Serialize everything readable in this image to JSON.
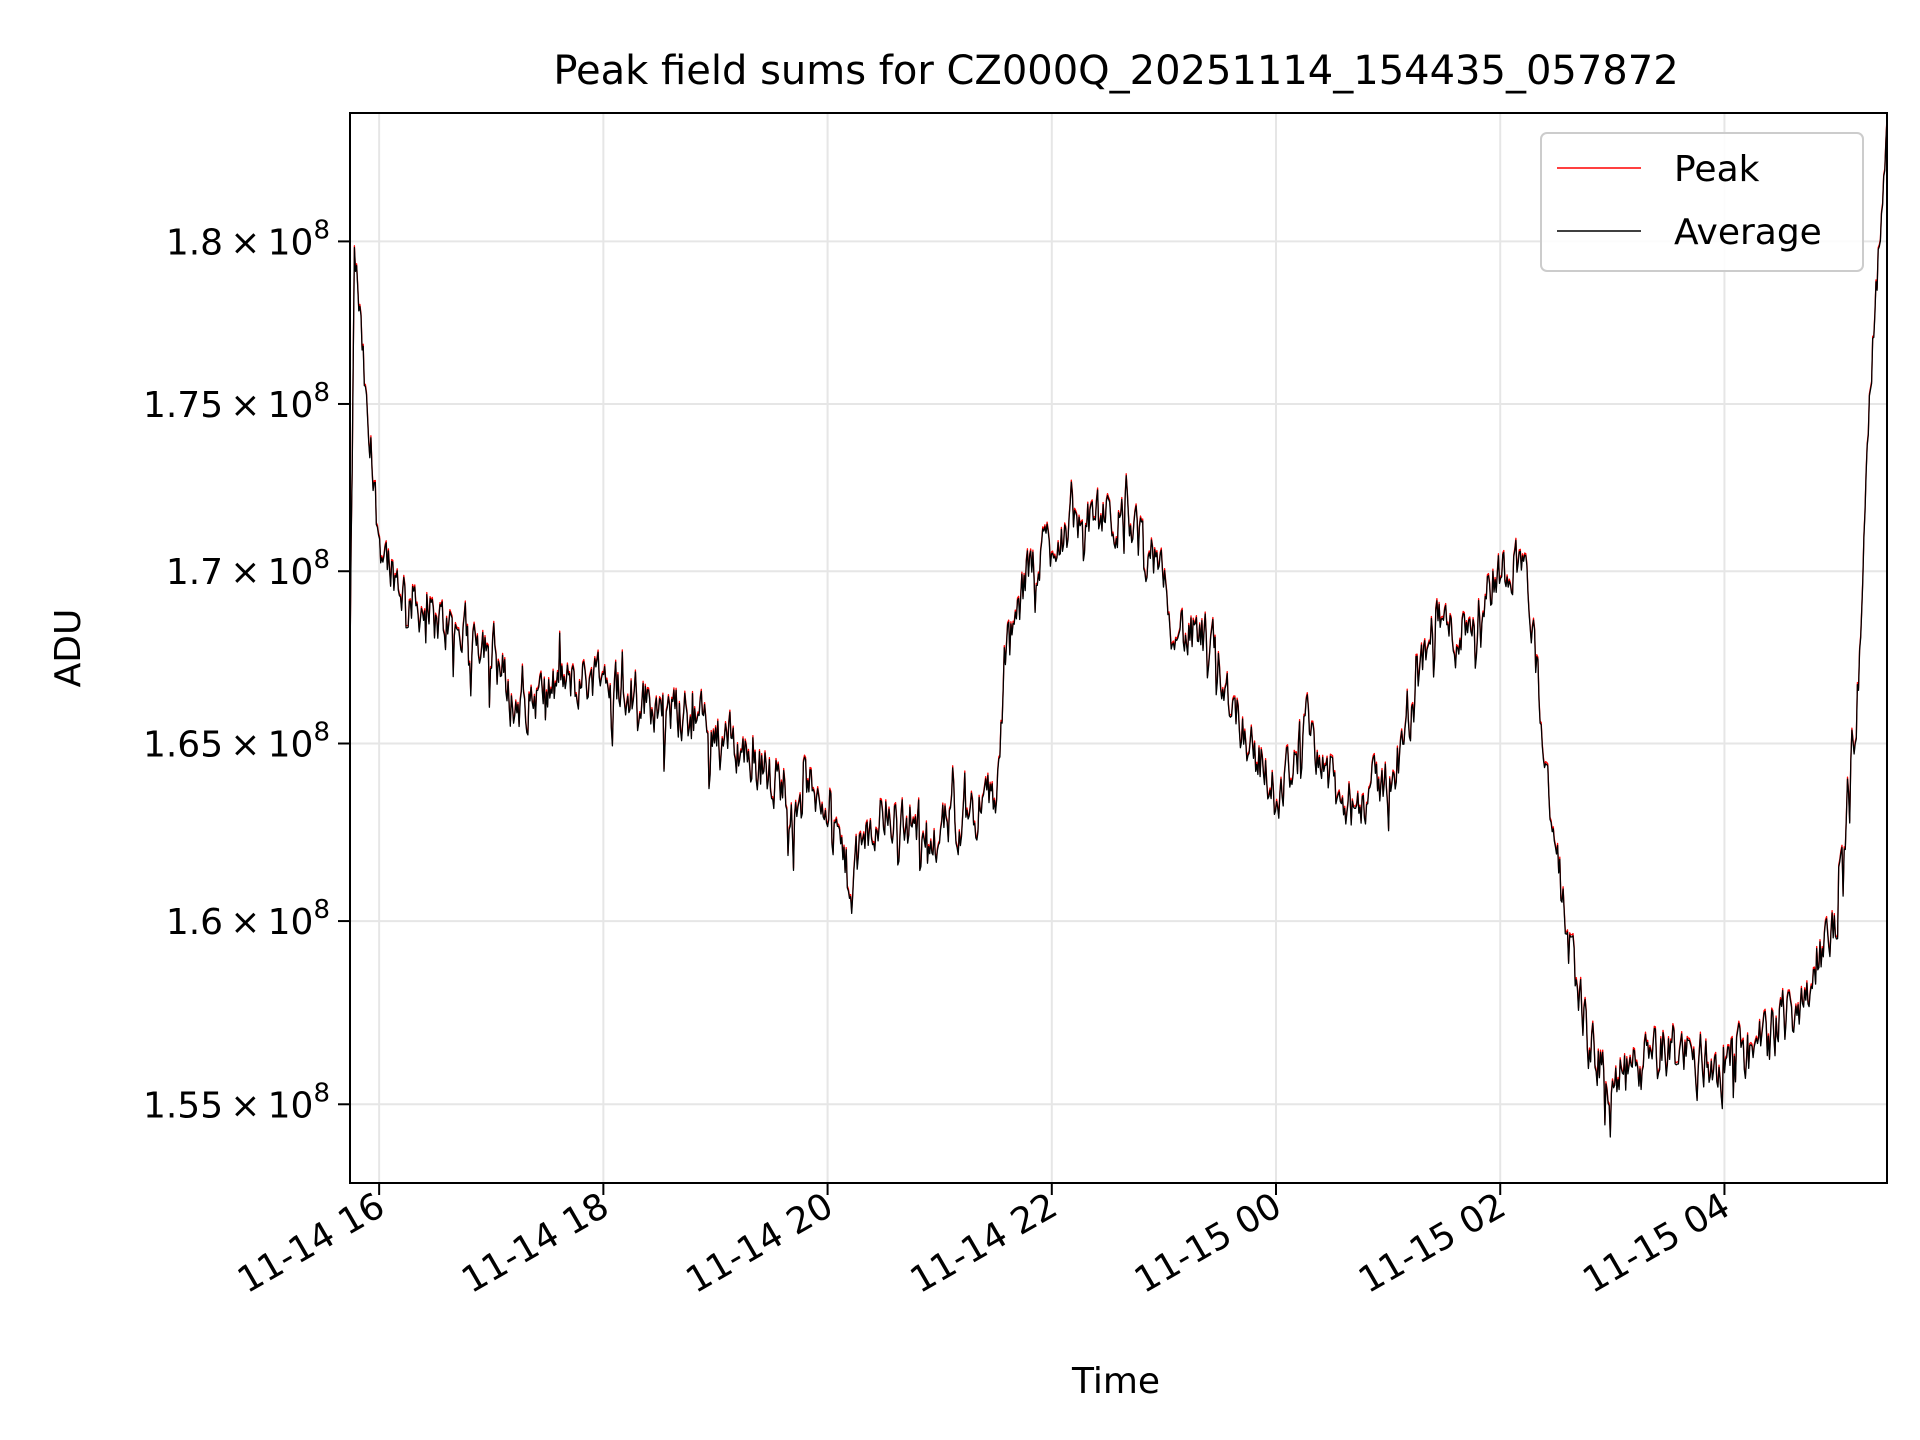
{
  "chart_data": {
    "type": "line",
    "title": "Peak field sums for CZ000Q_20251114_154435_057872",
    "xlabel": "Time",
    "ylabel": "ADU",
    "x_unit": "hours since 2025-11-14 00:00",
    "xlim": [
      15.74,
      29.45
    ],
    "ylim": [
      152900000.0,
      184050000.0
    ],
    "y_scale": "log",
    "grid": true,
    "legend_position": "top-right",
    "x_ticks": [
      {
        "value": 16,
        "label": "11-14 16"
      },
      {
        "value": 18,
        "label": "11-14 18"
      },
      {
        "value": 20,
        "label": "11-14 20"
      },
      {
        "value": 22,
        "label": "11-14 22"
      },
      {
        "value": 24,
        "label": "11-15 00"
      },
      {
        "value": 26,
        "label": "11-15 02"
      },
      {
        "value": 28,
        "label": "11-15 04"
      }
    ],
    "y_ticks": [
      {
        "value": 155000000.0,
        "mantissa": "1.55",
        "exponent": "8"
      },
      {
        "value": 160000000.0,
        "mantissa": "1.6",
        "exponent": "8"
      },
      {
        "value": 165000000.0,
        "mantissa": "1.65",
        "exponent": "8"
      },
      {
        "value": 170000000.0,
        "mantissa": "1.7",
        "exponent": "8"
      },
      {
        "value": 175000000.0,
        "mantissa": "1.75",
        "exponent": "8"
      },
      {
        "value": 180000000.0,
        "mantissa": "1.8",
        "exponent": "8"
      }
    ],
    "tick_base": "10",
    "tick_times": "×",
    "series": [
      {
        "name": "Peak",
        "color": "#ff0000",
        "offset": 0.0006
      },
      {
        "name": "Average",
        "color": "#000000",
        "offset": 0
      }
    ],
    "trend": {
      "x": [
        15.74,
        15.78,
        15.82,
        15.9,
        16.0,
        16.2,
        16.5,
        17.0,
        17.2,
        17.5,
        18.0,
        18.5,
        19.0,
        19.5,
        20.0,
        20.2,
        20.3,
        20.5,
        21.0,
        21.5,
        21.6,
        21.8,
        22.0,
        22.3,
        22.6,
        22.8,
        23.0,
        23.2,
        23.4,
        23.7,
        24.0,
        24.3,
        24.6,
        25.0,
        25.2,
        25.4,
        25.6,
        26.0,
        26.2,
        26.3,
        26.5,
        26.8,
        27.0,
        27.5,
        28.0,
        28.3,
        28.6,
        28.8,
        29.0,
        29.2,
        29.3,
        29.45
      ],
      "y": [
        1.67,
        1.795,
        1.78,
        1.74,
        1.71,
        1.695,
        1.685,
        1.68,
        1.66,
        1.665,
        1.67,
        1.66,
        1.655,
        1.64,
        1.635,
        1.61,
        1.62,
        1.63,
        1.625,
        1.635,
        1.675,
        1.7,
        1.71,
        1.715,
        1.715,
        1.71,
        1.695,
        1.68,
        1.68,
        1.655,
        1.635,
        1.655,
        1.63,
        1.64,
        1.655,
        1.69,
        1.68,
        1.7,
        1.705,
        1.68,
        1.615,
        1.565,
        1.555,
        1.565,
        1.56,
        1.565,
        1.575,
        1.585,
        1.6,
        1.67,
        1.76,
        1.83
      ],
      "noise_amplitude": 0.012,
      "scale": 100000000.0
    }
  }
}
